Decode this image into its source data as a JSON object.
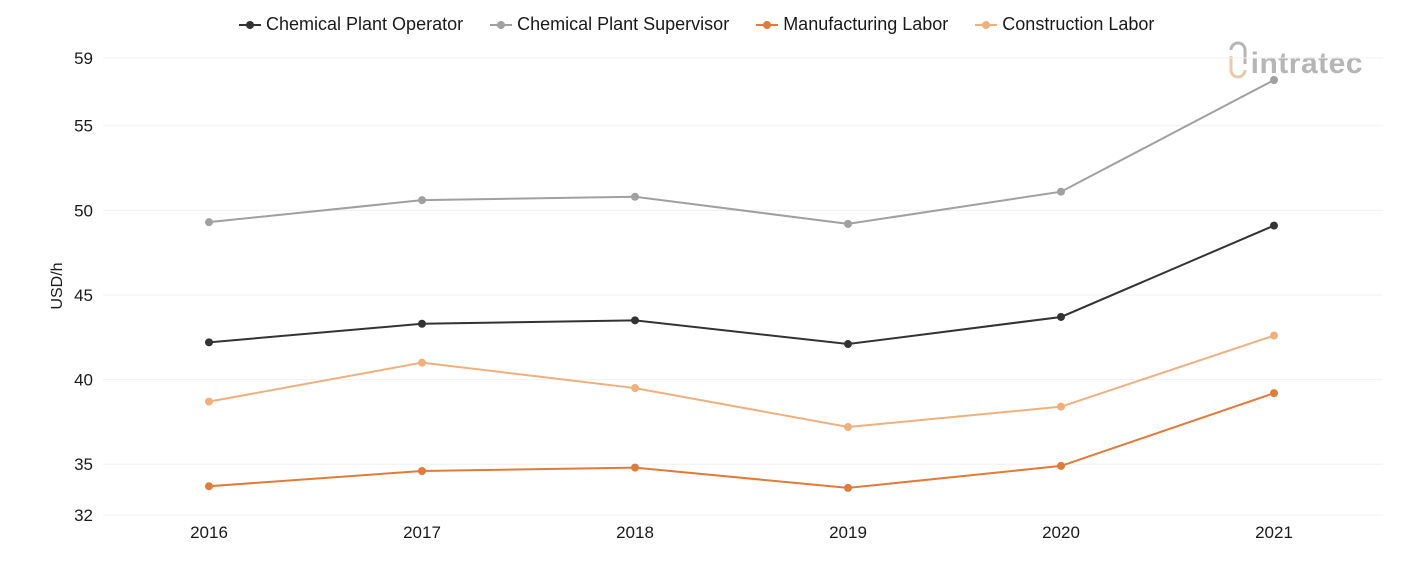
{
  "watermark": "intratec",
  "chart_data": {
    "type": "line",
    "x": [
      "2016",
      "2017",
      "2018",
      "2019",
      "2020",
      "2021"
    ],
    "ylabel": "USD/h",
    "xlabel": "",
    "y_ticks": [
      32,
      35,
      40,
      45,
      50,
      55,
      59
    ],
    "ylim": [
      32,
      59
    ],
    "grid": true,
    "legend_position": "top",
    "series": [
      {
        "name": "Chemical Plant Operator",
        "color": "#333333",
        "values": [
          42.2,
          43.3,
          43.5,
          42.1,
          43.7,
          49.1
        ]
      },
      {
        "name": "Chemical Plant Supervisor",
        "color": "#a0a0a0",
        "values": [
          49.3,
          50.6,
          50.8,
          49.2,
          51.1,
          57.7
        ]
      },
      {
        "name": "Manufacturing Labor",
        "color": "#e07b39",
        "values": [
          33.7,
          34.6,
          34.8,
          33.6,
          34.9,
          39.2
        ]
      },
      {
        "name": "Construction Labor",
        "color": "#f0b07e",
        "values": [
          38.7,
          41.0,
          39.5,
          37.2,
          38.4,
          42.6
        ]
      }
    ]
  }
}
